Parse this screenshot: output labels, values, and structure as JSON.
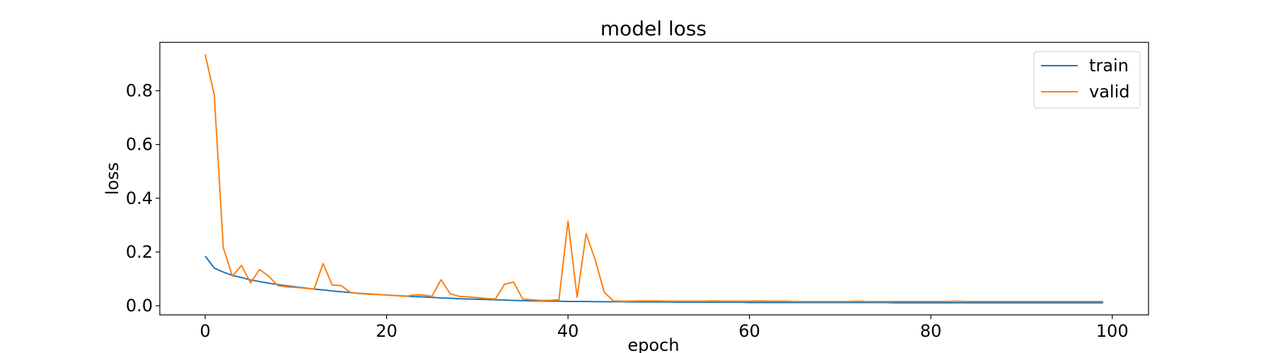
{
  "chart_data": {
    "type": "line",
    "title": "model loss",
    "xlabel": "epoch",
    "ylabel": "loss",
    "xlim": [
      -5,
      104
    ],
    "ylim": [
      -0.034,
      0.98
    ],
    "x_ticks": [
      0,
      20,
      40,
      60,
      80,
      100
    ],
    "y_ticks": [
      0.0,
      0.2,
      0.4,
      0.6,
      0.8
    ],
    "x_tick_labels": [
      "0",
      "20",
      "40",
      "60",
      "80",
      "100"
    ],
    "y_tick_labels": [
      "0.0",
      "0.2",
      "0.4",
      "0.6",
      "0.8"
    ],
    "grid": false,
    "legend": "top-right",
    "series": [
      {
        "name": "train",
        "color": "#1f77b4",
        "x": [
          0,
          1,
          2,
          3,
          4,
          5,
          6,
          7,
          8,
          9,
          10,
          11,
          12,
          13,
          14,
          15,
          16,
          17,
          18,
          19,
          20,
          21,
          22,
          23,
          24,
          25,
          26,
          27,
          28,
          29,
          30,
          31,
          32,
          33,
          34,
          35,
          36,
          37,
          38,
          39,
          40,
          41,
          42,
          43,
          44,
          45,
          46,
          47,
          48,
          49,
          50,
          51,
          52,
          53,
          54,
          55,
          56,
          57,
          58,
          59,
          60,
          61,
          62,
          63,
          64,
          65,
          66,
          67,
          68,
          69,
          70,
          71,
          72,
          73,
          74,
          75,
          76,
          77,
          78,
          79,
          80,
          81,
          82,
          83,
          84,
          85,
          86,
          87,
          88,
          89,
          90,
          91,
          92,
          93,
          94,
          95,
          96,
          97,
          98,
          99
        ],
        "values": [
          0.185,
          0.14,
          0.125,
          0.113,
          0.105,
          0.096,
          0.09,
          0.084,
          0.079,
          0.074,
          0.07,
          0.066,
          0.062,
          0.059,
          0.055,
          0.052,
          0.049,
          0.046,
          0.044,
          0.042,
          0.04,
          0.038,
          0.036,
          0.034,
          0.033,
          0.031,
          0.029,
          0.028,
          0.026,
          0.025,
          0.024,
          0.023,
          0.022,
          0.021,
          0.02,
          0.019,
          0.018,
          0.018,
          0.017,
          0.017,
          0.016,
          0.016,
          0.016,
          0.015,
          0.015,
          0.015,
          0.015,
          0.014,
          0.014,
          0.014,
          0.014,
          0.014,
          0.013,
          0.013,
          0.013,
          0.013,
          0.013,
          0.013,
          0.013,
          0.013,
          0.012,
          0.012,
          0.012,
          0.012,
          0.012,
          0.012,
          0.012,
          0.012,
          0.012,
          0.012,
          0.012,
          0.012,
          0.012,
          0.012,
          0.012,
          0.012,
          0.011,
          0.011,
          0.011,
          0.011,
          0.011,
          0.011,
          0.011,
          0.011,
          0.011,
          0.011,
          0.011,
          0.011,
          0.011,
          0.011,
          0.011,
          0.011,
          0.011,
          0.011,
          0.011,
          0.011,
          0.011,
          0.011,
          0.011,
          0.011
        ]
      },
      {
        "name": "valid",
        "color": "#ff7f0e",
        "x": [
          0,
          1,
          2,
          3,
          4,
          5,
          6,
          7,
          8,
          9,
          10,
          11,
          12,
          13,
          14,
          15,
          16,
          17,
          18,
          19,
          20,
          21,
          22,
          23,
          24,
          25,
          26,
          27,
          28,
          29,
          30,
          31,
          32,
          33,
          34,
          35,
          36,
          37,
          38,
          39,
          40,
          41,
          42,
          43,
          44,
          45,
          46,
          47,
          48,
          49,
          50,
          51,
          52,
          53,
          54,
          55,
          56,
          57,
          58,
          59,
          60,
          61,
          62,
          63,
          64,
          65,
          66,
          67,
          68,
          69,
          70,
          71,
          72,
          73,
          74,
          75,
          76,
          77,
          78,
          79,
          80,
          81,
          82,
          83,
          84,
          85,
          86,
          87,
          88,
          89,
          90,
          91,
          92,
          93,
          94,
          95,
          96,
          97,
          98,
          99
        ],
        "values": [
          0.935,
          0.785,
          0.215,
          0.11,
          0.15,
          0.085,
          0.135,
          0.11,
          0.075,
          0.07,
          0.068,
          0.065,
          0.062,
          0.157,
          0.077,
          0.075,
          0.05,
          0.045,
          0.043,
          0.042,
          0.04,
          0.038,
          0.035,
          0.04,
          0.04,
          0.035,
          0.097,
          0.045,
          0.035,
          0.033,
          0.03,
          0.027,
          0.025,
          0.08,
          0.088,
          0.025,
          0.022,
          0.02,
          0.02,
          0.022,
          0.315,
          0.032,
          0.268,
          0.17,
          0.05,
          0.018,
          0.017,
          0.017,
          0.018,
          0.018,
          0.018,
          0.017,
          0.017,
          0.017,
          0.017,
          0.017,
          0.018,
          0.017,
          0.017,
          0.017,
          0.017,
          0.018,
          0.017,
          0.017,
          0.017,
          0.016,
          0.016,
          0.016,
          0.016,
          0.016,
          0.016,
          0.016,
          0.017,
          0.016,
          0.016,
          0.016,
          0.016,
          0.016,
          0.016,
          0.016,
          0.016,
          0.016,
          0.016,
          0.017,
          0.016,
          0.016,
          0.016,
          0.016,
          0.016,
          0.016,
          0.016,
          0.016,
          0.016,
          0.016,
          0.016,
          0.016,
          0.016,
          0.016,
          0.016,
          0.016
        ]
      }
    ]
  }
}
